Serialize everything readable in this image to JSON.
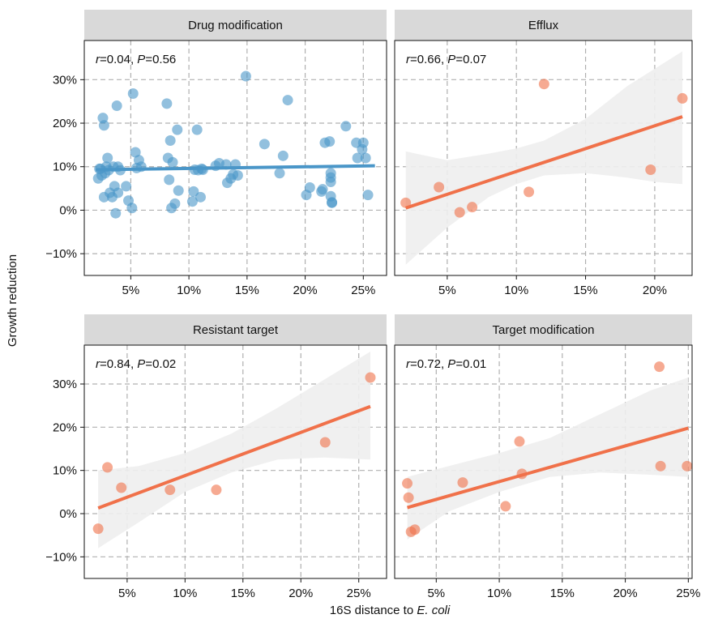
{
  "figure": {
    "ylabel": "Growth reduction",
    "xlabel_prefix": "16S distance to ",
    "xlabel_species": "E. coli"
  },
  "colors": {
    "drug_modification": "#4a96c8",
    "other": "#f0714a",
    "strip_bg": "#d9d9d9",
    "band": "#eeeeee",
    "grid": "#b0b0b0"
  },
  "chart_data": [
    {
      "type": "scatter",
      "title": "Drug modification",
      "stat_r": "0.04",
      "stat_p": "0.56",
      "color": "#4a96c8",
      "xlim": [
        0.01,
        0.27
      ],
      "ylim": [
        -0.15,
        0.39
      ],
      "xticks": [
        0.05,
        0.1,
        0.15,
        0.2,
        0.25
      ],
      "xtick_labels": [
        "5%",
        "10%",
        "15%",
        "20%",
        "25%"
      ],
      "yticks": [
        -0.1,
        0.0,
        0.1,
        0.2,
        0.3
      ],
      "ytick_labels": [
        "−10%",
        "0%",
        "10%",
        "20%",
        "30%"
      ],
      "trend": {
        "x": [
          0.02,
          0.26
        ],
        "y": [
          0.093,
          0.102
        ]
      },
      "band": null,
      "points": [
        [
          0.022,
          0.073
        ],
        [
          0.023,
          0.095
        ],
        [
          0.024,
          0.095
        ],
        [
          0.025,
          0.08
        ],
        [
          0.026,
          0.212
        ],
        [
          0.027,
          0.195
        ],
        [
          0.027,
          0.03
        ],
        [
          0.028,
          0.085
        ],
        [
          0.029,
          0.1
        ],
        [
          0.03,
          0.12
        ],
        [
          0.031,
          0.092
        ],
        [
          0.032,
          0.04
        ],
        [
          0.034,
          0.03
        ],
        [
          0.035,
          0.1
        ],
        [
          0.036,
          0.055
        ],
        [
          0.037,
          -0.007
        ],
        [
          0.038,
          0.24
        ],
        [
          0.039,
          0.1
        ],
        [
          0.039,
          0.04
        ],
        [
          0.041,
          0.092
        ],
        [
          0.046,
          0.055
        ],
        [
          0.048,
          0.022
        ],
        [
          0.051,
          0.005
        ],
        [
          0.052,
          0.268
        ],
        [
          0.054,
          0.133
        ],
        [
          0.055,
          0.097
        ],
        [
          0.057,
          0.115
        ],
        [
          0.059,
          0.1
        ],
        [
          0.081,
          0.245
        ],
        [
          0.082,
          0.12
        ],
        [
          0.083,
          0.07
        ],
        [
          0.084,
          0.16
        ],
        [
          0.085,
          0.005
        ],
        [
          0.086,
          0.11
        ],
        [
          0.088,
          0.015
        ],
        [
          0.09,
          0.185
        ],
        [
          0.091,
          0.045
        ],
        [
          0.103,
          0.02
        ],
        [
          0.104,
          0.043
        ],
        [
          0.105,
          0.093
        ],
        [
          0.107,
          0.185
        ],
        [
          0.108,
          0.092
        ],
        [
          0.11,
          0.03
        ],
        [
          0.111,
          0.095
        ],
        [
          0.112,
          0.093
        ],
        [
          0.123,
          0.102
        ],
        [
          0.126,
          0.108
        ],
        [
          0.132,
          0.105
        ],
        [
          0.133,
          0.063
        ],
        [
          0.136,
          0.073
        ],
        [
          0.138,
          0.082
        ],
        [
          0.14,
          0.105
        ],
        [
          0.142,
          0.08
        ],
        [
          0.149,
          0.308
        ],
        [
          0.165,
          0.152
        ],
        [
          0.178,
          0.085
        ],
        [
          0.181,
          0.125
        ],
        [
          0.185,
          0.253
        ],
        [
          0.201,
          0.035
        ],
        [
          0.204,
          0.052
        ],
        [
          0.214,
          0.043
        ],
        [
          0.215,
          0.048
        ],
        [
          0.217,
          0.155
        ],
        [
          0.221,
          0.158
        ],
        [
          0.222,
          0.085
        ],
        [
          0.222,
          0.065
        ],
        [
          0.222,
          0.032
        ],
        [
          0.222,
          0.075
        ],
        [
          0.223,
          0.017
        ],
        [
          0.223,
          0.018
        ],
        [
          0.235,
          0.193
        ],
        [
          0.244,
          0.155
        ],
        [
          0.245,
          0.12
        ],
        [
          0.249,
          0.14
        ],
        [
          0.25,
          0.155
        ],
        [
          0.252,
          0.12
        ],
        [
          0.254,
          0.035
        ]
      ]
    },
    {
      "type": "scatter",
      "title": "Efflux",
      "stat_r": "0.66",
      "stat_p": "0.07",
      "color": "#f0714a",
      "xlim": [
        0.012,
        0.227
      ],
      "ylim": [
        -0.15,
        0.39
      ],
      "xticks": [
        0.05,
        0.1,
        0.15,
        0.2
      ],
      "xtick_labels": [
        "5%",
        "10%",
        "15%",
        "20%"
      ],
      "yticks": [
        -0.1,
        0.0,
        0.1,
        0.2,
        0.3
      ],
      "ytick_labels": [
        "−10%",
        "0%",
        "10%",
        "20%",
        "30%"
      ],
      "trend": {
        "x": [
          0.02,
          0.22
        ],
        "y": [
          0.005,
          0.215
        ]
      },
      "band": {
        "x": [
          0.02,
          0.05,
          0.08,
          0.1,
          0.12,
          0.15,
          0.18,
          0.2,
          0.22
        ],
        "lo": [
          -0.125,
          -0.04,
          0.03,
          0.06,
          0.08,
          0.085,
          0.075,
          0.065,
          0.06
        ],
        "hi": [
          0.135,
          0.115,
          0.13,
          0.142,
          0.16,
          0.21,
          0.285,
          0.325,
          0.365
        ]
      },
      "points": [
        [
          0.02,
          0.017
        ],
        [
          0.044,
          0.053
        ],
        [
          0.059,
          -0.005
        ],
        [
          0.068,
          0.007
        ],
        [
          0.109,
          0.042
        ],
        [
          0.12,
          0.29
        ],
        [
          0.197,
          0.093
        ],
        [
          0.22,
          0.257
        ]
      ]
    },
    {
      "type": "scatter",
      "title": "Resistant target",
      "stat_r": "0.84",
      "stat_p": "0.02",
      "color": "#f0714a",
      "xlim": [
        0.013,
        0.274
      ],
      "ylim": [
        -0.15,
        0.39
      ],
      "xticks": [
        0.05,
        0.1,
        0.15,
        0.2,
        0.25
      ],
      "xtick_labels": [
        "5%",
        "10%",
        "15%",
        "20%",
        "25%"
      ],
      "yticks": [
        -0.1,
        0.0,
        0.1,
        0.2,
        0.3
      ],
      "ytick_labels": [
        "−10%",
        "0%",
        "10%",
        "20%",
        "30%"
      ],
      "trend": {
        "x": [
          0.025,
          0.26
        ],
        "y": [
          0.013,
          0.248
        ]
      },
      "band": {
        "x": [
          0.025,
          0.06,
          0.1,
          0.14,
          0.18,
          0.22,
          0.26
        ],
        "lo": [
          -0.08,
          -0.02,
          0.05,
          0.095,
          0.125,
          0.13,
          0.125
        ],
        "hi": [
          0.1,
          0.11,
          0.14,
          0.185,
          0.245,
          0.31,
          0.375
        ]
      },
      "points": [
        [
          0.025,
          -0.035
        ],
        [
          0.033,
          0.107
        ],
        [
          0.045,
          0.06
        ],
        [
          0.087,
          0.055
        ],
        [
          0.127,
          0.055
        ],
        [
          0.221,
          0.165
        ],
        [
          0.26,
          0.315
        ]
      ]
    },
    {
      "type": "scatter",
      "title": "Target modification",
      "stat_r": "0.72",
      "stat_p": "0.01",
      "color": "#f0714a",
      "xlim": [
        0.017,
        0.253
      ],
      "ylim": [
        -0.15,
        0.39
      ],
      "xticks": [
        0.05,
        0.1,
        0.15,
        0.2,
        0.25
      ],
      "xtick_labels": [
        "5%",
        "10%",
        "15%",
        "20%",
        "25%"
      ],
      "yticks": [
        -0.1,
        0.0,
        0.1,
        0.2,
        0.3
      ],
      "ytick_labels": [
        "−10%",
        "0%",
        "10%",
        "20%",
        "30%"
      ],
      "trend": {
        "x": [
          0.027,
          0.25
        ],
        "y": [
          0.014,
          0.198
        ]
      },
      "band": {
        "x": [
          0.027,
          0.06,
          0.1,
          0.14,
          0.18,
          0.22,
          0.25
        ],
        "lo": [
          -0.06,
          0.005,
          0.05,
          0.085,
          0.095,
          0.09,
          0.085
        ],
        "hi": [
          0.085,
          0.11,
          0.14,
          0.175,
          0.23,
          0.285,
          0.315
        ]
      },
      "points": [
        [
          0.027,
          0.07
        ],
        [
          0.028,
          0.037
        ],
        [
          0.03,
          -0.042
        ],
        [
          0.033,
          -0.037
        ],
        [
          0.071,
          0.072
        ],
        [
          0.105,
          0.017
        ],
        [
          0.116,
          0.167
        ],
        [
          0.118,
          0.092
        ],
        [
          0.227,
          0.34
        ],
        [
          0.228,
          0.11
        ],
        [
          0.249,
          0.11
        ]
      ]
    }
  ]
}
